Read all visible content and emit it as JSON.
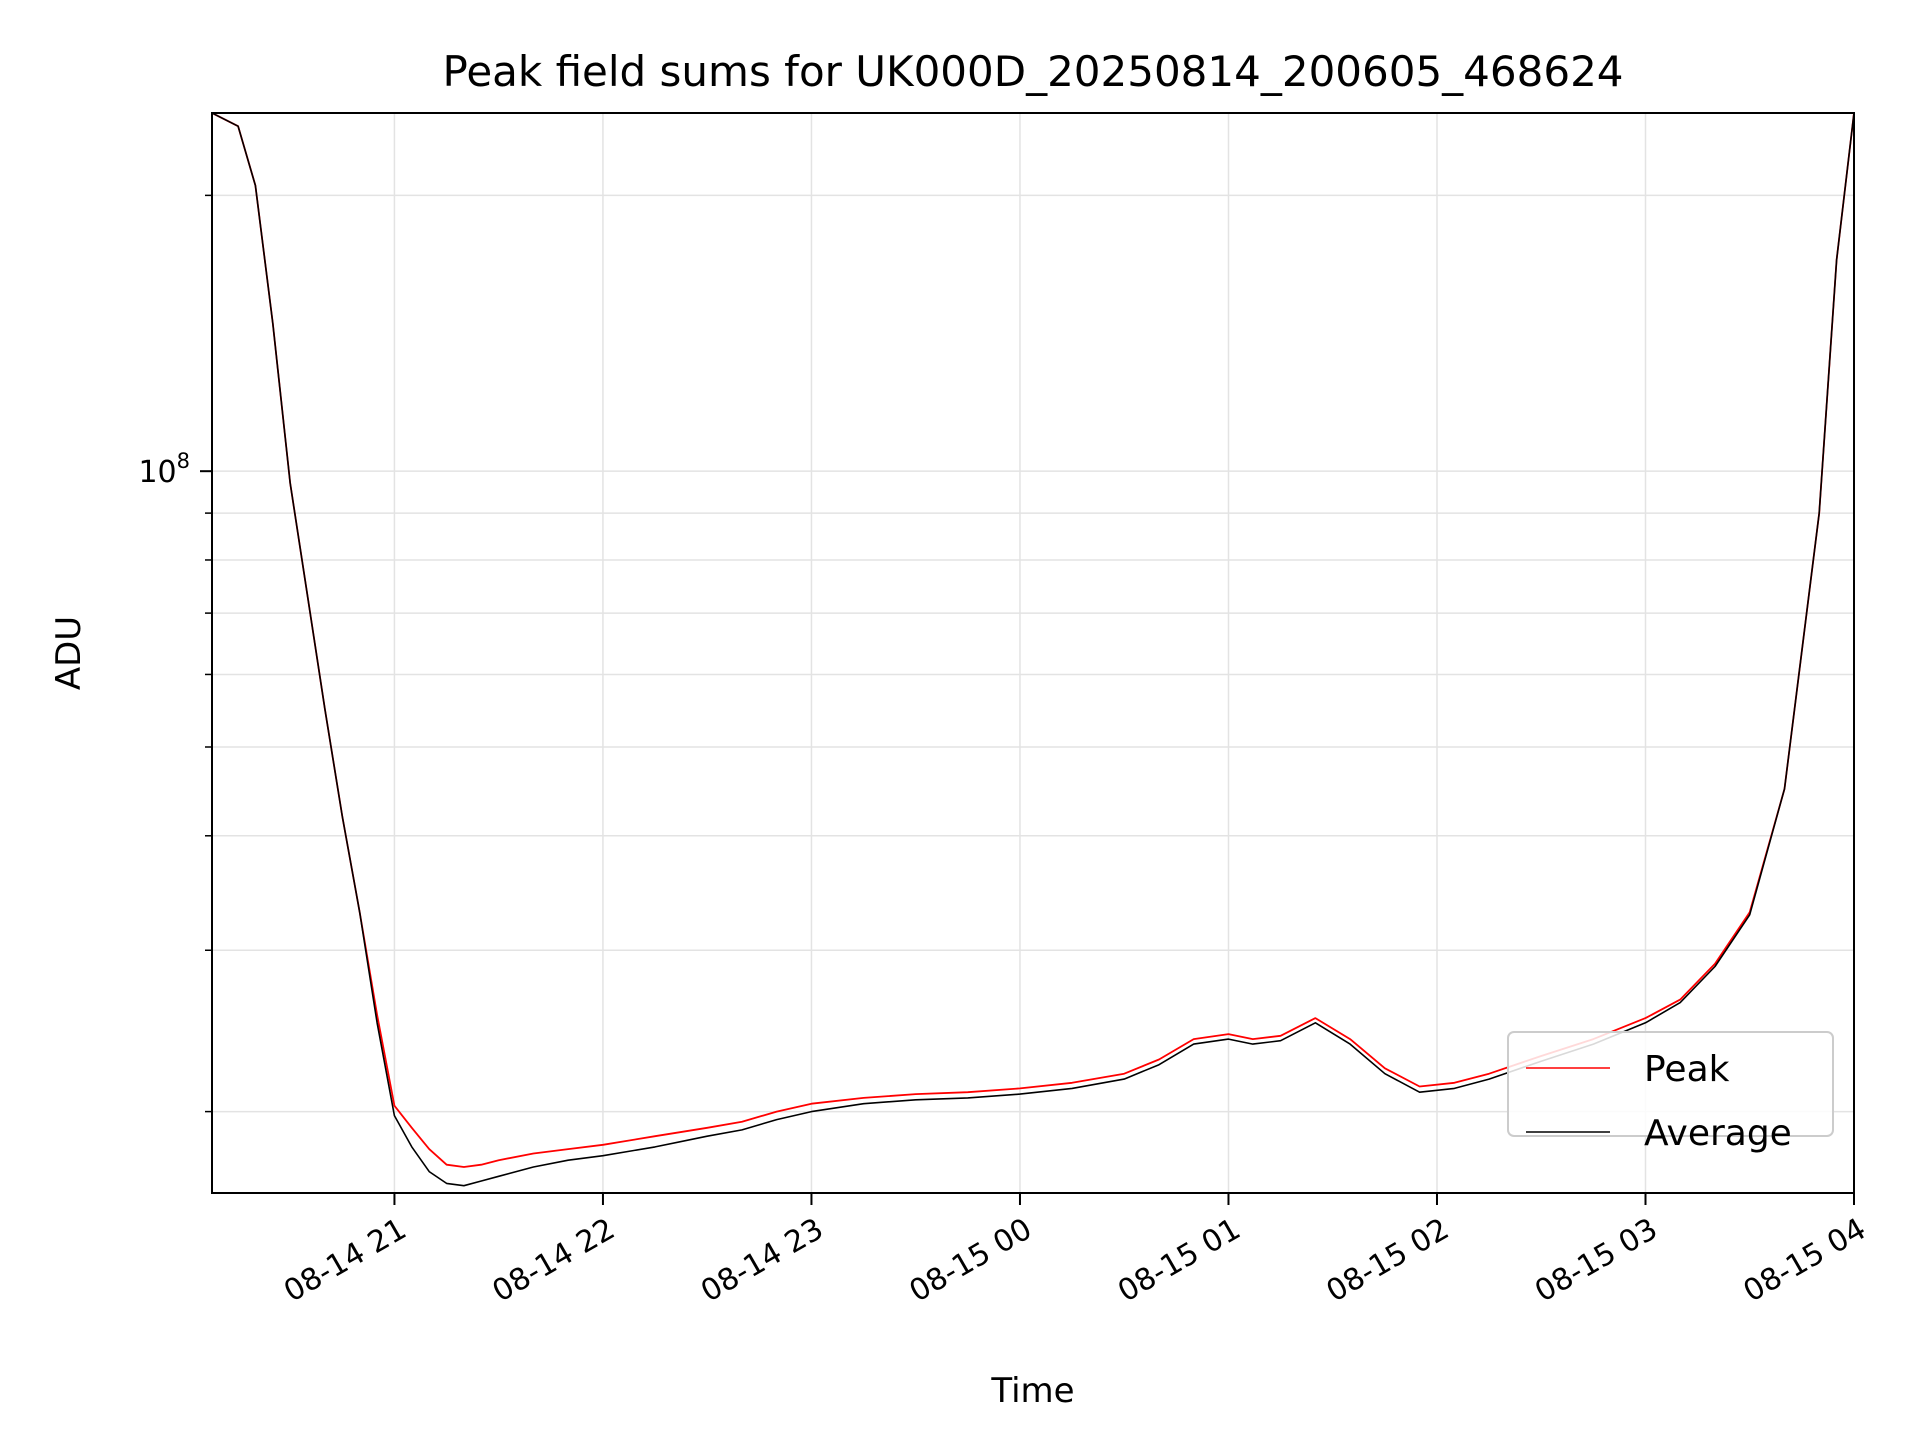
{
  "chart_data": {
    "type": "line",
    "title": "Peak field sums for UK000D_20250814_200605_468624",
    "xlabel": "Time",
    "ylabel": "ADU",
    "y_scale": "log",
    "ylim": [
      16300000,
      246000000
    ],
    "xlim": [
      "2025-08-14T20:07:30",
      "2025-08-15T04:00:00"
    ],
    "x_ticks": [
      {
        "t": "2025-08-14T21:00:00",
        "label": "08-14 21"
      },
      {
        "t": "2025-08-14T22:00:00",
        "label": "08-14 22"
      },
      {
        "t": "2025-08-14T23:00:00",
        "label": "08-14 23"
      },
      {
        "t": "2025-08-15T00:00:00",
        "label": "08-15 00"
      },
      {
        "t": "2025-08-15T01:00:00",
        "label": "08-15 01"
      },
      {
        "t": "2025-08-15T02:00:00",
        "label": "08-15 02"
      },
      {
        "t": "2025-08-15T03:00:00",
        "label": "08-15 03"
      },
      {
        "t": "2025-08-15T04:00:00",
        "label": "08-15 04"
      }
    ],
    "y_major_ticks": [
      {
        "value": 100000000,
        "base": "10",
        "exp": "8"
      }
    ],
    "y_minor_ticks": [
      20000000,
      30000000,
      40000000,
      50000000,
      60000000,
      70000000,
      80000000,
      90000000,
      200000000
    ],
    "grid": true,
    "legend_position": "lower-right",
    "series": [
      {
        "name": "Peak",
        "color": "#ff0000",
        "x": [
          "2025-08-14T20:07:30",
          "2025-08-14T20:15:00",
          "2025-08-14T20:20:00",
          "2025-08-14T20:25:00",
          "2025-08-14T20:30:00",
          "2025-08-14T20:35:00",
          "2025-08-14T20:40:00",
          "2025-08-14T20:45:00",
          "2025-08-14T20:50:00",
          "2025-08-14T20:55:00",
          "2025-08-14T21:00:00",
          "2025-08-14T21:05:00",
          "2025-08-14T21:10:00",
          "2025-08-14T21:15:00",
          "2025-08-14T21:20:00",
          "2025-08-14T21:25:00",
          "2025-08-14T21:30:00",
          "2025-08-14T21:40:00",
          "2025-08-14T21:50:00",
          "2025-08-14T22:00:00",
          "2025-08-14T22:15:00",
          "2025-08-14T22:30:00",
          "2025-08-14T22:40:00",
          "2025-08-14T22:50:00",
          "2025-08-14T23:00:00",
          "2025-08-14T23:15:00",
          "2025-08-14T23:30:00",
          "2025-08-14T23:45:00",
          "2025-08-15T00:00:00",
          "2025-08-15T00:15:00",
          "2025-08-15T00:30:00",
          "2025-08-15T00:40:00",
          "2025-08-15T00:50:00",
          "2025-08-15T01:00:00",
          "2025-08-15T01:07:00",
          "2025-08-15T01:15:00",
          "2025-08-15T01:25:00",
          "2025-08-15T01:35:00",
          "2025-08-15T01:45:00",
          "2025-08-15T01:55:00",
          "2025-08-15T02:05:00",
          "2025-08-15T02:15:00",
          "2025-08-15T02:30:00",
          "2025-08-15T02:45:00",
          "2025-08-15T03:00:00",
          "2025-08-15T03:10:00",
          "2025-08-15T03:20:00",
          "2025-08-15T03:30:00",
          "2025-08-15T03:40:00",
          "2025-08-15T03:50:00",
          "2025-08-15T03:55:00",
          "2025-08-15T04:00:00"
        ],
        "y": [
          246000000,
          238000000,
          205000000,
          145000000,
          97000000,
          73000000,
          55000000,
          42000000,
          33000000,
          25500000,
          20300000,
          19200000,
          18200000,
          17500000,
          17400000,
          17500000,
          17700000,
          18000000,
          18200000,
          18400000,
          18800000,
          19200000,
          19500000,
          20000000,
          20400000,
          20700000,
          20900000,
          21000000,
          21200000,
          21500000,
          22000000,
          22800000,
          24000000,
          24300000,
          24000000,
          24200000,
          25300000,
          24000000,
          22300000,
          21300000,
          21500000,
          22000000,
          23000000,
          24000000,
          25300000,
          26500000,
          29000000,
          33000000,
          45000000,
          90000000,
          170000000,
          246000000
        ]
      },
      {
        "name": "Average",
        "color": "#000000",
        "x": [
          "2025-08-14T20:07:30",
          "2025-08-14T20:15:00",
          "2025-08-14T20:20:00",
          "2025-08-14T20:25:00",
          "2025-08-14T20:30:00",
          "2025-08-14T20:35:00",
          "2025-08-14T20:40:00",
          "2025-08-14T20:45:00",
          "2025-08-14T20:50:00",
          "2025-08-14T20:55:00",
          "2025-08-14T21:00:00",
          "2025-08-14T21:05:00",
          "2025-08-14T21:10:00",
          "2025-08-14T21:15:00",
          "2025-08-14T21:20:00",
          "2025-08-14T21:25:00",
          "2025-08-14T21:30:00",
          "2025-08-14T21:40:00",
          "2025-08-14T21:50:00",
          "2025-08-14T22:00:00",
          "2025-08-14T22:15:00",
          "2025-08-14T22:30:00",
          "2025-08-14T22:40:00",
          "2025-08-14T22:50:00",
          "2025-08-14T23:00:00",
          "2025-08-14T23:15:00",
          "2025-08-14T23:30:00",
          "2025-08-14T23:45:00",
          "2025-08-15T00:00:00",
          "2025-08-15T00:15:00",
          "2025-08-15T00:30:00",
          "2025-08-15T00:40:00",
          "2025-08-15T00:50:00",
          "2025-08-15T01:00:00",
          "2025-08-15T01:07:00",
          "2025-08-15T01:15:00",
          "2025-08-15T01:25:00",
          "2025-08-15T01:35:00",
          "2025-08-15T01:45:00",
          "2025-08-15T01:55:00",
          "2025-08-15T02:05:00",
          "2025-08-15T02:15:00",
          "2025-08-15T02:30:00",
          "2025-08-15T02:45:00",
          "2025-08-15T03:00:00",
          "2025-08-15T03:10:00",
          "2025-08-15T03:20:00",
          "2025-08-15T03:30:00",
          "2025-08-15T03:40:00",
          "2025-08-15T03:50:00",
          "2025-08-15T03:55:00",
          "2025-08-15T04:00:00"
        ],
        "y": [
          246000000,
          238000000,
          205000000,
          145000000,
          97000000,
          73000000,
          55000000,
          42000000,
          33000000,
          25000000,
          19800000,
          18300000,
          17200000,
          16700000,
          16600000,
          16800000,
          17000000,
          17400000,
          17700000,
          17900000,
          18300000,
          18800000,
          19100000,
          19600000,
          20000000,
          20400000,
          20600000,
          20700000,
          20900000,
          21200000,
          21700000,
          22500000,
          23700000,
          24000000,
          23700000,
          23900000,
          25000000,
          23700000,
          22000000,
          21000000,
          21200000,
          21700000,
          22700000,
          23700000,
          25000000,
          26300000,
          28800000,
          32800000,
          45000000,
          90000000,
          170000000,
          246000000
        ]
      }
    ]
  }
}
